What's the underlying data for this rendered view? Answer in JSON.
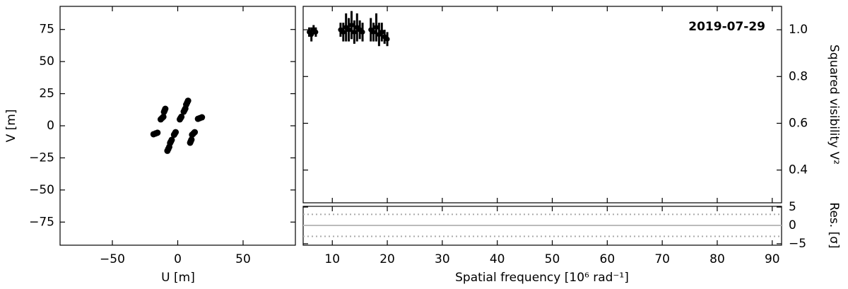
{
  "chart_data": [
    {
      "type": "scatter",
      "x_label": "U [m]",
      "y_label": "V [m]",
      "color": "#000000",
      "x": [
        15.5,
        17,
        18.5,
        -15.5,
        -17,
        -18.5,
        -13,
        -12,
        -11,
        13,
        12,
        11,
        -10.5,
        -10,
        -9.5,
        10.5,
        10,
        9.5,
        6.5,
        7.2,
        7.9,
        -6.5,
        -7.2,
        -7.9,
        4.6,
        5.2,
        5.8,
        -4.6,
        -5.2,
        -5.8,
        1.6,
        2.2,
        2.8,
        -1.6,
        -2.2,
        -2.8
      ],
      "y": [
        5.4,
        6,
        6.6,
        -5.4,
        -6,
        -6.6,
        5,
        6,
        7,
        -5,
        -6,
        -7,
        10.8,
        12,
        13.2,
        -10.8,
        -12,
        -13.2,
        16.5,
        18,
        19.5,
        -16.5,
        -18,
        -19.5,
        11,
        12.2,
        13.4,
        -11,
        -12.2,
        -13.4,
        5,
        6,
        7,
        -5,
        -6,
        -7
      ],
      "xlim": [
        -90,
        90
      ],
      "ylim": [
        -93,
        93
      ],
      "xticks": [
        {
          "value": -50,
          "label": "−50"
        },
        0,
        50
      ],
      "yticks": [
        {
          "value": -75,
          "label": "−75"
        },
        {
          "value": -50,
          "label": "−50"
        },
        {
          "value": -25,
          "label": "−25"
        },
        0,
        25,
        50,
        75
      ]
    },
    {
      "type": "errorbar",
      "annotation": "2019-07-29",
      "y_label": "Squared visibility V²",
      "color": "#000000",
      "x": [
        5.8,
        6.2,
        6.6,
        7.0,
        11.5,
        12.0,
        12.5,
        13.0,
        13.5,
        14.0,
        14.5,
        15.0,
        15.5,
        17.0,
        17.5,
        18.0,
        18.5,
        19.0,
        19.5,
        20.0
      ],
      "y": [
        0.99,
        0.98,
        1.0,
        0.99,
        1.0,
        0.99,
        1.01,
        1.0,
        1.02,
        0.99,
        1.01,
        1.0,
        0.99,
        1.0,
        0.99,
        1.01,
        0.98,
        0.99,
        0.97,
        0.96
      ],
      "yerr": [
        0.02,
        0.03,
        0.02,
        0.02,
        0.03,
        0.04,
        0.06,
        0.05,
        0.06,
        0.05,
        0.06,
        0.04,
        0.04,
        0.05,
        0.04,
        0.06,
        0.05,
        0.04,
        0.03,
        0.03
      ],
      "xlim": [
        4.7,
        91.7
      ],
      "ylim": [
        0.26,
        1.1
      ],
      "yticks": [
        0.4,
        0.6,
        0.8,
        {
          "value": 1,
          "label": "1.0"
        }
      ]
    },
    {
      "type": "residual",
      "x_label": "Spatial frequency [10⁶ rad⁻¹]",
      "y_label": "Res. [σ]",
      "hlines": [
        -3,
        0,
        3
      ],
      "xlim": [
        4.7,
        91.7
      ],
      "ylim": [
        -5.4,
        5.2
      ],
      "xticks": [
        10,
        20,
        30,
        40,
        50,
        60,
        70,
        80,
        90
      ],
      "yticks": [
        {
          "value": -5,
          "label": "−5"
        },
        0,
        5
      ]
    }
  ]
}
